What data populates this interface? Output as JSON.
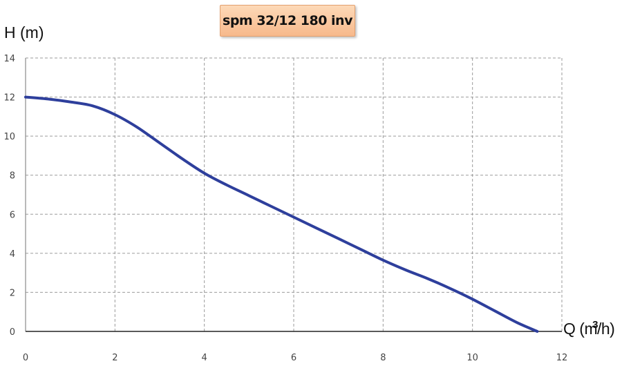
{
  "chart_data": {
    "type": "line",
    "title": "spm 32/12 180  inv",
    "xlabel": {
      "main": "Q (m",
      "sup": "3",
      "end": "/h)"
    },
    "ylabel": "H (m)",
    "xlim": [
      0,
      12
    ],
    "ylim": [
      0,
      14
    ],
    "xticks": [
      0,
      2,
      4,
      6,
      8,
      10,
      12
    ],
    "yticks": [
      0,
      2,
      4,
      6,
      8,
      10,
      12,
      14
    ],
    "grid": true,
    "series": [
      {
        "color": "#2e3f9c",
        "x": [
          0,
          0.5,
          1,
          1.5,
          2,
          2.5,
          3,
          3.5,
          4,
          4.5,
          5,
          5.5,
          6,
          6.5,
          7,
          7.5,
          8,
          8.5,
          9,
          9.5,
          10,
          10.5,
          11,
          11.45
        ],
        "y": [
          12,
          11.9,
          11.75,
          11.55,
          11.1,
          10.45,
          9.65,
          8.85,
          8.1,
          7.5,
          6.95,
          6.4,
          5.85,
          5.3,
          4.75,
          4.2,
          3.65,
          3.15,
          2.7,
          2.2,
          1.65,
          1.05,
          0.45,
          0
        ]
      }
    ]
  }
}
